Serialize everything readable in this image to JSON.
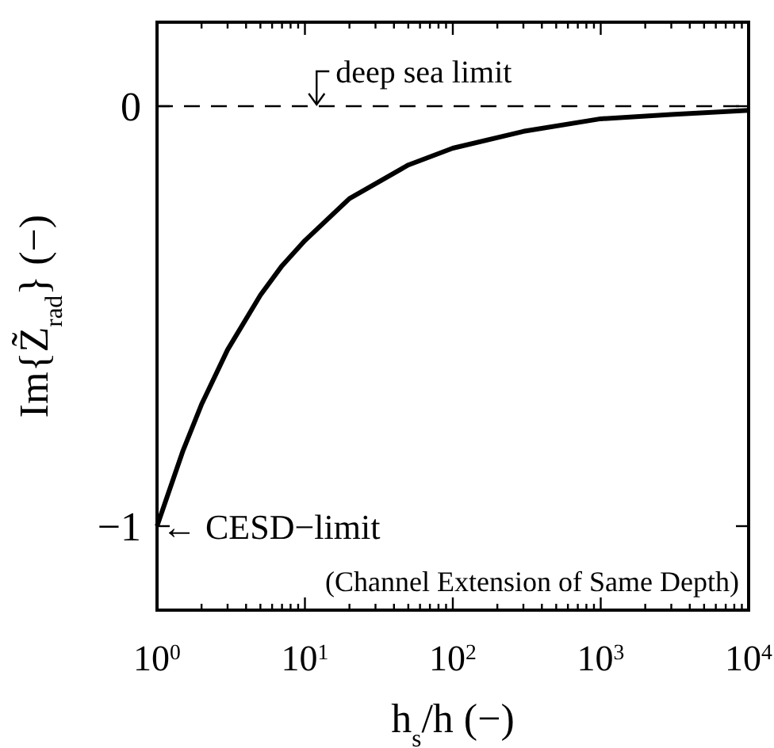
{
  "chart_data": {
    "type": "line",
    "xlabel": "h$_{s}$/h (−)",
    "ylabel": "Im{Z̃$_{rad}$} (−)",
    "log": "x",
    "xlim": [
      1,
      10000
    ],
    "ylim": [
      -1.2,
      0.2
    ],
    "xticks": [
      {
        "value": 1,
        "label": "10$^{0}$"
      },
      {
        "value": 2,
        "label": null
      },
      {
        "value": 3,
        "label": null
      },
      {
        "value": 4,
        "label": null
      },
      {
        "value": 5,
        "label": null
      },
      {
        "value": 6,
        "label": null
      },
      {
        "value": 7,
        "label": null
      },
      {
        "value": 8,
        "label": null
      },
      {
        "value": 9,
        "label": null
      },
      {
        "value": 10,
        "label": "10$^{1}$"
      },
      {
        "value": 20,
        "label": null
      },
      {
        "value": 30,
        "label": null
      },
      {
        "value": 40,
        "label": null
      },
      {
        "value": 50,
        "label": null
      },
      {
        "value": 60,
        "label": null
      },
      {
        "value": 70,
        "label": null
      },
      {
        "value": 80,
        "label": null
      },
      {
        "value": 90,
        "label": null
      },
      {
        "value": 100,
        "label": "10$^{2}$"
      },
      {
        "value": 200,
        "label": null
      },
      {
        "value": 300,
        "label": null
      },
      {
        "value": 400,
        "label": null
      },
      {
        "value": 500,
        "label": null
      },
      {
        "value": 600,
        "label": null
      },
      {
        "value": 700,
        "label": null
      },
      {
        "value": 800,
        "label": null
      },
      {
        "value": 900,
        "label": null
      },
      {
        "value": 1000,
        "label": "10$^{3}$"
      },
      {
        "value": 2000,
        "label": null
      },
      {
        "value": 3000,
        "label": null
      },
      {
        "value": 4000,
        "label": null
      },
      {
        "value": 5000,
        "label": null
      },
      {
        "value": 6000,
        "label": null
      },
      {
        "value": 7000,
        "label": null
      },
      {
        "value": 8000,
        "label": null
      },
      {
        "value": 9000,
        "label": null
      },
      {
        "value": 10000,
        "label": "10$^{4}$"
      }
    ],
    "yticks": [
      0,
      {
        "value": -1,
        "label": "−1"
      }
    ],
    "x": [
      1,
      1.5,
      2,
      3,
      5,
      7,
      10,
      20,
      50,
      100,
      300,
      1000,
      3000,
      10000
    ],
    "series": [
      {
        "color": "#000000",
        "values": [
          -1,
          -0.82,
          -0.71,
          -0.58,
          -0.45,
          -0.38,
          -0.32,
          -0.22,
          -0.14,
          -0.1,
          -0.06,
          -0.03,
          -0.02,
          -0.01
        ]
      }
    ],
    "ref_lines": [
      {
        "axis": "y",
        "value": 0,
        "color": "#000000",
        "line_style": "dashed"
      }
    ],
    "annotations": [
      {
        "text": "deep sea limit",
        "x": 12,
        "y": 0
      },
      {
        "text": "← CESD−limit",
        "x": 1,
        "y": -1
      },
      "(Channel Extension of Same Depth)"
    ],
    "grid": false,
    "marker": "none",
    "line_style": "solid"
  }
}
